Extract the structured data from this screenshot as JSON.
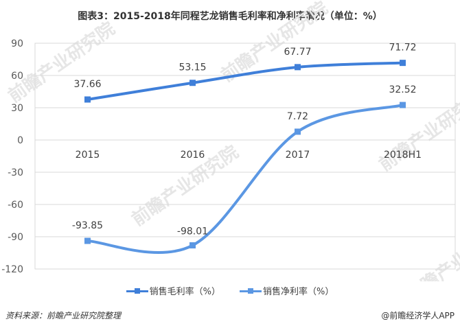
{
  "title": "图表3：2015-2018年同程艺龙销售毛利率和净利率情况（单位：%）",
  "colors": {
    "gross_margin": "#3f7fd9",
    "net_margin": "#5b97e3",
    "gridline": "#d9d9d9",
    "frame": "#d9d9d9"
  },
  "legend": {
    "items": [
      {
        "label": "销售毛利率（%）",
        "color": "#3f7fd9"
      },
      {
        "label": "销售净利率（%）",
        "color": "#5b97e3"
      }
    ]
  },
  "watermark": {
    "text": "前瞻产业研究院"
  },
  "footer": {
    "source": "资料来源：前瞻产业研究院整理",
    "credit": "@前瞻经济学人APP"
  },
  "chart_data": {
    "type": "line",
    "title": "图表3：2015-2018年同程艺龙销售毛利率和净利率情况（单位：%）",
    "categories": [
      "2015",
      "2016",
      "2017",
      "2018H1"
    ],
    "series": [
      {
        "name": "销售毛利率（%）",
        "values": [
          37.66,
          53.15,
          67.77,
          71.72
        ],
        "smooth": true
      },
      {
        "name": "销售净利率（%）",
        "values": [
          -93.85,
          -98.01,
          7.72,
          32.52
        ],
        "smooth": true
      }
    ],
    "data_labels": {
      "销售毛利率（%）": [
        "37.66",
        "53.15",
        "67.77",
        "71.72"
      ],
      "销售净利率（%）": [
        "-93.85",
        "-98.01",
        "7.72",
        "32.52"
      ]
    },
    "xlabel": "",
    "ylabel": "",
    "ylim": [
      -120,
      90
    ],
    "yticks": [
      90,
      60,
      30,
      0,
      -30,
      -60,
      -90,
      -120
    ],
    "ytick_labels": [
      "90",
      "60",
      "30",
      "0",
      "-30",
      "-60",
      "-90",
      "-120"
    ],
    "grid": true,
    "legend_position": "bottom"
  }
}
